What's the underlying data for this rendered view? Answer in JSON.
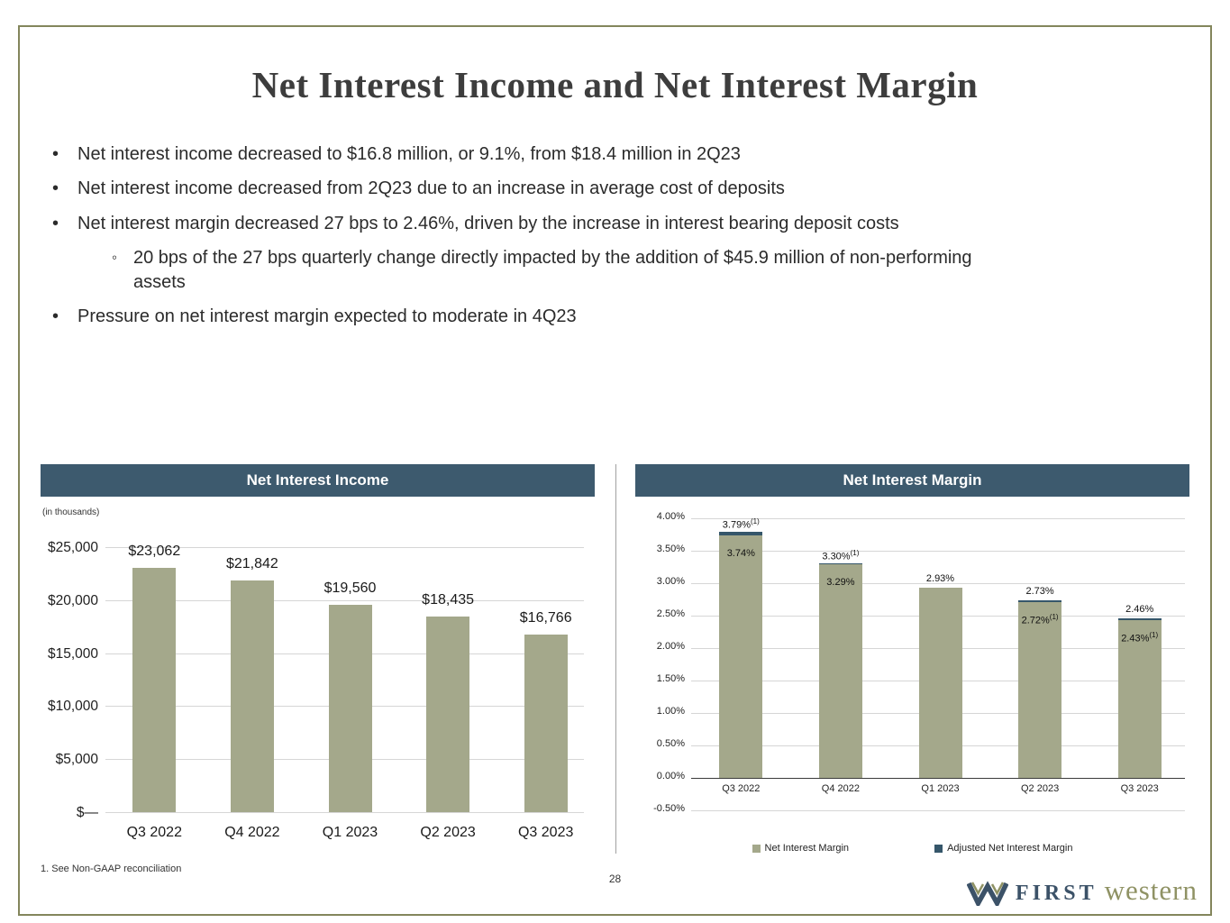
{
  "slide": {
    "title": "Net Interest Income and Net Interest Margin",
    "bullets": [
      {
        "level": 1,
        "text": "Net interest income decreased to $16.8 million, or 9.1%, from $18.4 million in 2Q23"
      },
      {
        "level": 1,
        "text": "Net interest income decreased from 2Q23 due to an increase in average cost of deposits"
      },
      {
        "level": 1,
        "text": "Net interest margin decreased 27 bps to 2.46%, driven by the increase in interest bearing deposit costs"
      },
      {
        "level": 2,
        "text": "20 bps of the 27 bps quarterly change directly impacted by the addition of $45.9 million of non-performing assets"
      },
      {
        "level": 1,
        "text": "Pressure on net interest margin expected to moderate in 4Q23"
      }
    ],
    "footnote": "1.   See Non-GAAP reconciliation",
    "page_number": "28",
    "logo": {
      "first": "FIRST",
      "western": "western"
    }
  },
  "colors": {
    "header_bar": "#3d5a6e",
    "bar_sage": "#a4a88b",
    "bar_dark": "#35566a",
    "slide_border": "#83865c"
  },
  "chart_data": [
    {
      "type": "bar",
      "title": "Net Interest Income",
      "units_note": "(in thousands)",
      "categories": [
        "Q3 2022",
        "Q4 2022",
        "Q1 2023",
        "Q2 2023",
        "Q3 2023"
      ],
      "values": [
        23062,
        21842,
        19560,
        18435,
        16766
      ],
      "value_labels": [
        "$23,062",
        "$21,842",
        "$19,560",
        "$18,435",
        "$16,766"
      ],
      "ylim": [
        0,
        25000
      ],
      "ytick_labels": [
        "$25,000",
        "$20,000",
        "$15,000",
        "$10,000",
        "$5,000",
        "$—"
      ],
      "bar_color": "#a4a88b",
      "grid": true,
      "legend_position": "none"
    },
    {
      "type": "bar",
      "title": "Net Interest Margin",
      "categories": [
        "Q3 2022",
        "Q4 2022",
        "Q1 2023",
        "Q2 2023",
        "Q3 2023"
      ],
      "series": [
        {
          "name": "Net Interest Margin",
          "values": [
            3.74,
            3.29,
            2.93,
            2.73,
            2.46
          ],
          "color": "#a4a88b"
        },
        {
          "name": "Adjusted Net Interest Margin",
          "values": [
            3.79,
            3.3,
            null,
            2.72,
            2.43
          ],
          "color": "#35566a"
        }
      ],
      "labels": [
        {
          "above": "3.79%",
          "above_sup": "(1)",
          "inside": "3.74%",
          "inside_sup": ""
        },
        {
          "above": "3.30%",
          "above_sup": "(1)",
          "inside": "3.29%",
          "inside_sup": ""
        },
        {
          "above": "2.93%",
          "above_sup": "",
          "inside": "",
          "inside_sup": ""
        },
        {
          "above": "2.73%",
          "above_sup": "",
          "inside": "2.72%",
          "inside_sup": "(1)"
        },
        {
          "above": "2.46%",
          "above_sup": "",
          "inside": "2.43%",
          "inside_sup": "(1)"
        }
      ],
      "ylim": [
        -0.5,
        4.0
      ],
      "ytick_labels": [
        "4.00%",
        "3.50%",
        "3.00%",
        "2.50%",
        "2.00%",
        "1.50%",
        "1.00%",
        "0.50%",
        "0.00%",
        "-0.50%"
      ],
      "grid": true,
      "legend_position": "bottom"
    }
  ]
}
